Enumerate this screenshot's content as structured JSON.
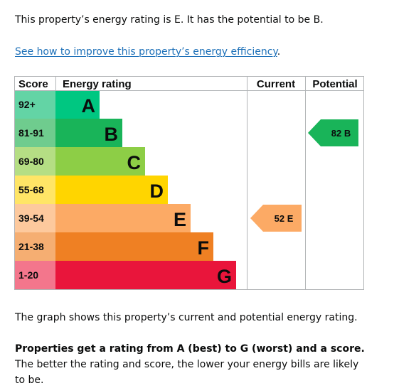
{
  "intro_text": "This property’s energy rating is E. It has the potential to be B.",
  "improve_link": "See how to improve this property’s energy efficiency",
  "improve_suffix": ".",
  "graph_caption": "The graph shows this property’s current and potential energy rating.",
  "explanation_bold": "Properties get a rating from A (best) to G (worst) and a score.",
  "explanation_rest": " The better the rating and score, the lower your energy bills are likely to be.",
  "chart_data": {
    "type": "bar",
    "headers": {
      "score": "Score",
      "rating": "Energy rating",
      "current": "Current",
      "potential": "Potential"
    },
    "bands": [
      {
        "letter": "A",
        "score": "92+",
        "color": "#00c781",
        "score_bg": "#63d4a5"
      },
      {
        "letter": "B",
        "score": "81-91",
        "color": "#19b459",
        "score_bg": "#6fcc8e"
      },
      {
        "letter": "C",
        "score": "69-80",
        "color": "#8dce46",
        "score_bg": "#b5de84"
      },
      {
        "letter": "D",
        "score": "55-68",
        "color": "#ffd500",
        "score_bg": "#ffe566"
      },
      {
        "letter": "E",
        "score": "39-54",
        "color": "#fcaa65",
        "score_bg": "#fdc99d"
      },
      {
        "letter": "F",
        "score": "21-38",
        "color": "#ef8023",
        "score_bg": "#f5ae72"
      },
      {
        "letter": "G",
        "score": "1-20",
        "color": "#e9153b",
        "score_bg": "#f3768c"
      }
    ],
    "current": {
      "value": 52,
      "band": "E",
      "label": "52 E",
      "color": "#fcaa65"
    },
    "potential": {
      "value": 82,
      "band": "B",
      "label": "82 B",
      "color": "#19b459"
    }
  }
}
